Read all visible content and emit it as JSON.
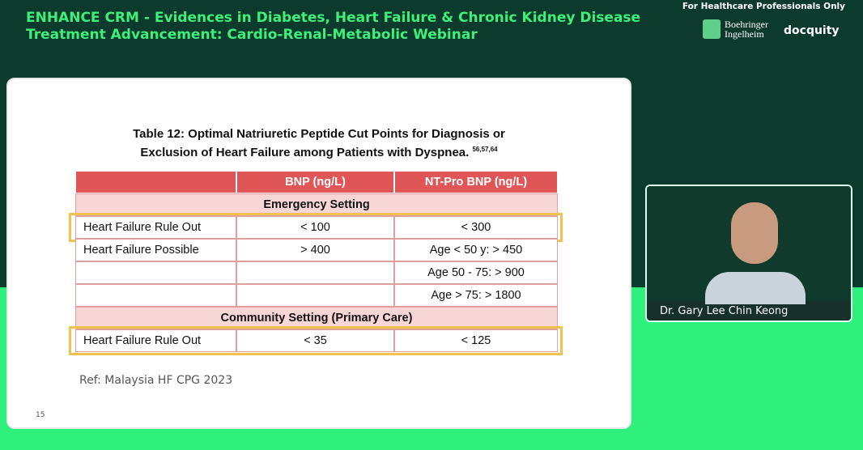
{
  "header": {
    "title": [
      "ENHANCE CRM - Evidences in Diabetes, Heart Failure & Chronic Kidney Disease",
      "Treatment Advancement: Cardio-Renal-Metabolic Webinar"
    ],
    "notice": "For Healthcare Professionals Only",
    "logos": {
      "sponsor": [
        "Boehringer",
        "Ingelheim"
      ],
      "platform": "docquity"
    }
  },
  "slide": {
    "table": {
      "title": [
        "Table 12: Optimal Natriuretic Peptide Cut Points for Diagnosis or",
        "Exclusion of Heart Failure among Patients with Dyspnea."
      ],
      "refs": "56,57,64",
      "columns": [
        null,
        "BNP (ng/L)",
        "NT-Pro BNP (ng/L)"
      ],
      "sections": [
        {
          "label": "Emergency Setting",
          "rows": [
            [
              "Heart Failure Rule Out",
              "< 100",
              "< 300"
            ],
            [
              "Heart Failure Possible",
              "> 400",
              "Age < 50 y: > 450"
            ],
            [
              null,
              null,
              "Age 50 - 75: > 900"
            ],
            [
              null,
              null,
              "Age > 75: > 1800"
            ]
          ]
        },
        {
          "label": "Community Setting (Primary Care)",
          "rows": [
            [
              "Heart Failure Rule Out",
              "< 35",
              "< 125"
            ]
          ]
        }
      ]
    },
    "reference": "Ref: Malaysia HF CPG 2023",
    "page": "15"
  },
  "speaker": {
    "name": "Dr. Gary Lee Chin Keong"
  }
}
